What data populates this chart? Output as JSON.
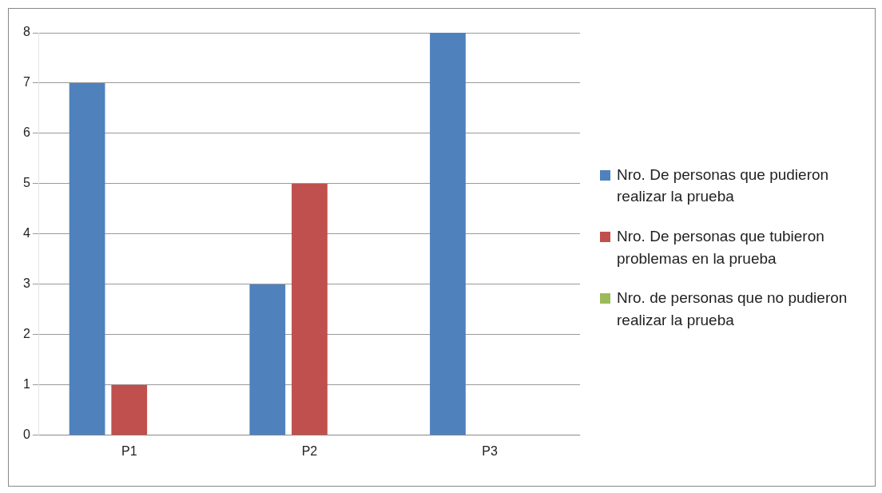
{
  "chart_data": {
    "type": "bar",
    "categories": [
      "P1",
      "P2",
      "P3"
    ],
    "series": [
      {
        "name": "Nro. De personas que pudieron realizar la prueba",
        "color": "#4f81bd",
        "values": [
          7,
          3,
          8
        ]
      },
      {
        "name": "Nro. De personas que tubieron problemas en la prueba",
        "color": "#c0504d",
        "values": [
          1,
          5,
          0
        ]
      },
      {
        "name": "Nro. de personas que no pudieron realizar la prueba",
        "color": "#9bbb59",
        "values": [
          0,
          0,
          0
        ]
      }
    ],
    "ylim": [
      0,
      8
    ],
    "yticks": [
      0,
      1,
      2,
      3,
      4,
      5,
      6,
      7,
      8
    ],
    "grid": "y",
    "legend": "right"
  }
}
